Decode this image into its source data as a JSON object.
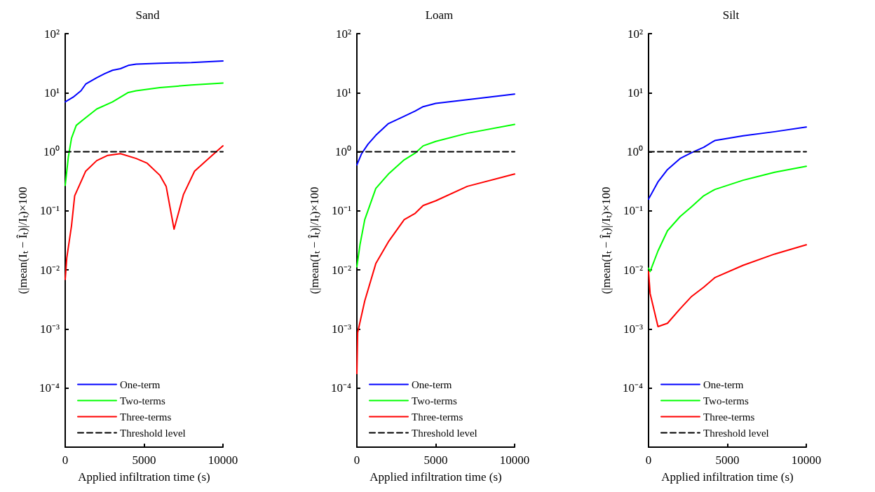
{
  "chart_data": [
    {
      "type": "line",
      "title": "Sand",
      "xlabel": "Applied infiltration time (s)",
      "ylabel": "(|mean(Iₜ − Îₜ)|/Iₜ)×100",
      "xlim": [
        0,
        10000
      ],
      "xticks": [
        0,
        5000,
        10000
      ],
      "ylim": [
        1e-05,
        100
      ],
      "yticks": [
        {
          "value": 0.0001,
          "label": "10⁻⁴"
        },
        {
          "value": 0.001,
          "label": "10⁻³"
        },
        {
          "value": 0.01,
          "label": "10⁻²"
        },
        {
          "value": 0.1,
          "label": "10⁻¹"
        },
        {
          "value": 1,
          "label": "10⁰"
        },
        {
          "value": 10,
          "label": "10¹"
        },
        {
          "value": 100,
          "label": "10²"
        }
      ],
      "log": "y",
      "grid": false,
      "legend": "bottom left",
      "marker": "none",
      "line_style": "solid",
      "series": [
        {
          "name": "One-term",
          "color": "#0000ff",
          "x": [
            0,
            500,
            1000,
            1300,
            2000,
            2500,
            3000,
            3500,
            4000,
            4500,
            6000,
            8000,
            10000
          ],
          "values": [
            7.0,
            8.4,
            10.8,
            14,
            18,
            21,
            24,
            25.5,
            29,
            30.5,
            31.6,
            32.4,
            34.5
          ]
        },
        {
          "name": "Two-terms",
          "color": "#00ff00",
          "x": [
            0,
            200,
            400,
            700,
            1200,
            2000,
            3000,
            4000,
            4500,
            6000,
            8000,
            10000
          ],
          "values": [
            0.27,
            0.82,
            1.7,
            2.8,
            3.6,
            5.3,
            7.0,
            10.1,
            10.8,
            12.2,
            13.5,
            14.6
          ]
        },
        {
          "name": "Three-terms",
          "color": "#ff0000",
          "x": [
            0,
            100,
            400,
            600,
            1300,
            2000,
            2700,
            3500,
            4500,
            5200,
            6000,
            6400,
            6900,
            7500,
            8200,
            9000,
            10000
          ],
          "values": [
            0.0069,
            0.016,
            0.056,
            0.18,
            0.47,
            0.71,
            0.87,
            0.93,
            0.77,
            0.64,
            0.4,
            0.26,
            0.049,
            0.19,
            0.47,
            0.73,
            1.26
          ]
        },
        {
          "name": "Threshold level",
          "color": "#000000",
          "line_style": "dashed",
          "x": [
            0,
            10000
          ],
          "values": [
            1,
            1
          ]
        }
      ]
    },
    {
      "type": "line",
      "title": "Loam",
      "xlabel": "Applied infiltration time (s)",
      "ylabel": "(|mean(Iₜ − Îₜ)|/Iₜ)×100",
      "xlim": [
        0,
        10000
      ],
      "xticks": [
        0,
        5000,
        10000
      ],
      "ylim": [
        1e-05,
        100
      ],
      "yticks": [
        {
          "value": 0.0001,
          "label": "10⁻⁴"
        },
        {
          "value": 0.001,
          "label": "10⁻³"
        },
        {
          "value": 0.01,
          "label": "10⁻²"
        },
        {
          "value": 0.1,
          "label": "10⁻¹"
        },
        {
          "value": 1,
          "label": "10⁰"
        },
        {
          "value": 10,
          "label": "10¹"
        },
        {
          "value": 100,
          "label": "10²"
        }
      ],
      "log": "y",
      "grid": false,
      "legend": "bottom left",
      "marker": "none",
      "line_style": "solid",
      "series": [
        {
          "name": "One-term",
          "color": "#0000ff",
          "x": [
            0,
            300,
            700,
            1200,
            2000,
            3000,
            3700,
            4200,
            5000,
            7000,
            10000
          ],
          "values": [
            0.6,
            0.93,
            1.34,
            1.9,
            3.0,
            4.0,
            4.9,
            5.8,
            6.6,
            7.6,
            9.5
          ]
        },
        {
          "name": "Two-terms",
          "color": "#00ff00",
          "x": [
            0,
            200,
            500,
            1200,
            2000,
            3000,
            3700,
            4200,
            5000,
            7000,
            10000
          ],
          "values": [
            0.0113,
            0.027,
            0.071,
            0.24,
            0.42,
            0.73,
            0.95,
            1.26,
            1.5,
            2.06,
            2.9
          ]
        },
        {
          "name": "Three-terms",
          "color": "#ff0000",
          "x": [
            0,
            50,
            500,
            1200,
            2000,
            3000,
            3700,
            4200,
            5000,
            7000,
            10000
          ],
          "values": [
            0.000176,
            0.00087,
            0.003,
            0.0128,
            0.03,
            0.071,
            0.091,
            0.123,
            0.148,
            0.26,
            0.42
          ]
        },
        {
          "name": "Threshold level",
          "color": "#000000",
          "line_style": "dashed",
          "x": [
            0,
            10000
          ],
          "values": [
            1,
            1
          ]
        }
      ]
    },
    {
      "type": "line",
      "title": "Silt",
      "xlabel": "Applied infiltration time (s)",
      "ylabel": "(|mean(Iₜ − Îₜ)|/Iₜ)×100",
      "xlim": [
        0,
        10000
      ],
      "xticks": [
        0,
        5000,
        10000
      ],
      "ylim": [
        1e-05,
        100
      ],
      "yticks": [
        {
          "value": 0.0001,
          "label": "10⁻⁴"
        },
        {
          "value": 0.001,
          "label": "10⁻³"
        },
        {
          "value": 0.01,
          "label": "10⁻²"
        },
        {
          "value": 0.1,
          "label": "10⁻¹"
        },
        {
          "value": 1,
          "label": "10⁰"
        },
        {
          "value": 10,
          "label": "10¹"
        },
        {
          "value": 100,
          "label": "10²"
        }
      ],
      "log": "y",
      "grid": false,
      "legend": "bottom left",
      "marker": "none",
      "line_style": "solid",
      "series": [
        {
          "name": "One-term",
          "color": "#0000ff",
          "x": [
            0,
            600,
            1200,
            2000,
            2700,
            3500,
            4200,
            6000,
            8000,
            10000
          ],
          "values": [
            0.158,
            0.31,
            0.5,
            0.77,
            0.96,
            1.19,
            1.55,
            1.87,
            2.19,
            2.63
          ]
        },
        {
          "name": "Two-terms",
          "color": "#00ff00",
          "x": [
            0,
            100,
            600,
            1200,
            2000,
            2700,
            3500,
            4200,
            6000,
            8000,
            10000
          ],
          "values": [
            0.0107,
            0.0094,
            0.021,
            0.046,
            0.08,
            0.116,
            0.18,
            0.23,
            0.33,
            0.45,
            0.57
          ]
        },
        {
          "name": "Three-terms",
          "color": "#ff0000",
          "x": [
            0,
            100,
            600,
            1200,
            2000,
            2700,
            3500,
            4200,
            6000,
            8000,
            10000
          ],
          "values": [
            0.0094,
            0.004,
            0.0011,
            0.00125,
            0.0022,
            0.0035,
            0.0051,
            0.0074,
            0.012,
            0.0186,
            0.0266
          ]
        },
        {
          "name": "Threshold level",
          "color": "#000000",
          "line_style": "dashed",
          "x": [
            0,
            10000
          ],
          "values": [
            1,
            1
          ]
        }
      ]
    }
  ]
}
